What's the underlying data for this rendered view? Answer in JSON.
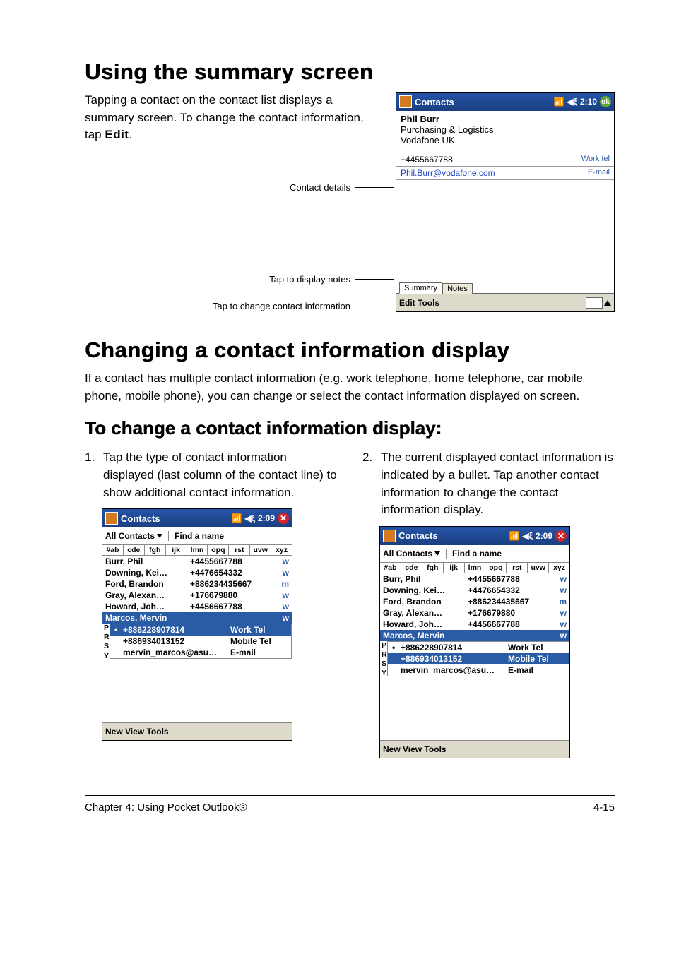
{
  "headings": {
    "h1a": "Using the summary screen",
    "h1b": "Changing a contact information display",
    "h2": "To change a contact information display:"
  },
  "para1_parts": {
    "a": "Tapping a contact on the contact list displays a summary screen. To change the contact information, tap ",
    "b": "Edit",
    "c": "."
  },
  "callouts": {
    "details": "Contact details",
    "notes": "Tap to display notes",
    "change": "Tap to change contact information"
  },
  "summary_shot": {
    "title": "Contacts",
    "time": "2:10",
    "ok": "ok",
    "name": "Phil Burr",
    "line2": "Purchasing & Logistics",
    "line3": "Vodafone UK",
    "work_num": "+4455667788",
    "work_lbl": "Work tel",
    "email": "Phil.Burr@vodafone.com",
    "email_lbl": "E-mail",
    "tab1": "Summary",
    "tab2": "Notes",
    "bottom": "Edit  Tools"
  },
  "para2": "If a contact has multiple contact information (e.g. work telephone, home telephone, car mobile phone, mobile phone), you can change or select the contact information displayed on screen.",
  "step1": {
    "num": "1.",
    "text": "Tap the type of contact information displayed (last column of the contact line) to show additional contact information."
  },
  "step2": {
    "num": "2.",
    "text": "The current displayed contact information is indicated by a bullet. Tap another contact information to change the contact information display."
  },
  "list_shot": {
    "title": "Contacts",
    "time": "2:09",
    "allc": "All Contacts",
    "find": "Find a name",
    "alpha": [
      "#ab",
      "cde",
      "fgh",
      "ijk",
      "lmn",
      "opq",
      "rst",
      "uvw",
      "xyz"
    ],
    "rows": [
      {
        "name": "Burr, Phil",
        "num": "+4455667788",
        "ind": "w"
      },
      {
        "name": "Downing, Kei…",
        "num": "+4476654332",
        "ind": "w"
      },
      {
        "name": "Ford, Brandon",
        "num": "+886234435667",
        "ind": "m"
      },
      {
        "name": "Gray, Alexan…",
        "num": "+176679880",
        "ind": "w"
      },
      {
        "name": "Howard, Joh…",
        "num": "+4456667788",
        "ind": "w"
      }
    ],
    "sel": {
      "name": "Marcos, Mervin",
      "num": "",
      "ind": "w"
    },
    "side": [
      "P",
      "R",
      "S",
      "Y"
    ],
    "bottom": "New  View  Tools"
  },
  "expand_a": {
    "rows": [
      {
        "b": "•",
        "v": "+886228907814",
        "t": "Work Tel",
        "sel": true
      },
      {
        "b": "",
        "v": "+886934013152",
        "t": "Mobile Tel",
        "sel": false
      },
      {
        "b": "",
        "v": "mervin_marcos@asu…",
        "t": "E-mail",
        "sel": false
      }
    ]
  },
  "expand_b": {
    "rows": [
      {
        "b": "•",
        "v": "+886228907814",
        "t": "Work Tel",
        "sel": false
      },
      {
        "b": "",
        "v": "+886934013152",
        "t": "Mobile Tel",
        "sel": true
      },
      {
        "b": "",
        "v": "mervin_marcos@asu…",
        "t": "E-mail",
        "sel": false
      }
    ]
  },
  "footer": {
    "left": "Chapter 4: Using Pocket Outlook®",
    "right": "4-15"
  },
  "colors": {
    "titlebar": "#2554a8",
    "sel": "#2a5ba5",
    "ok": "#5da82e",
    "close": "#d2232a",
    "link": "#1a46c8",
    "softbar": "#dedacb"
  }
}
